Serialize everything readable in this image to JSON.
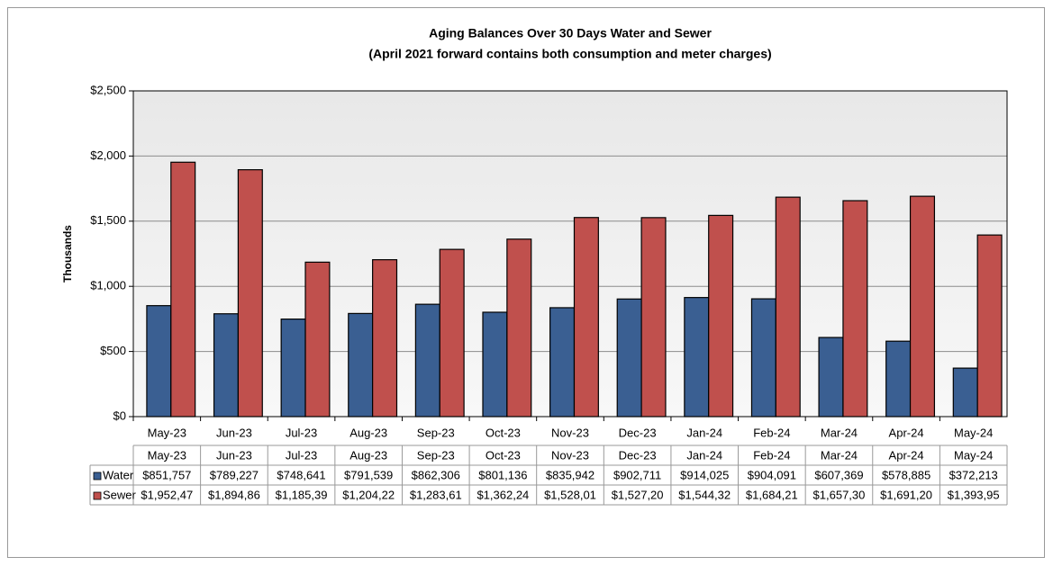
{
  "chart_data": {
    "type": "bar",
    "title": "Aging Balances Over 30 Days Water and Sewer",
    "subtitle": "(April 2021 forward contains both consumption and meter charges)",
    "y_label": "Thousands",
    "categories": [
      "May-23",
      "Jun-23",
      "Jul-23",
      "Aug-23",
      "Sep-23",
      "Oct-23",
      "Nov-23",
      "Dec-23",
      "Jan-24",
      "Feb-24",
      "Mar-24",
      "Apr-24",
      "May-24"
    ],
    "series": [
      {
        "name": "Water",
        "color": "#3a5f92",
        "values": [
          851.757,
          789.227,
          748.641,
          791.539,
          862.306,
          801.136,
          835.942,
          902.711,
          914.025,
          904.091,
          607.369,
          578.885,
          372.213
        ],
        "value_labels": [
          "$851,757",
          "$789,227",
          "$748,641",
          "$791,539",
          "$862,306",
          "$801,136",
          "$835,942",
          "$902,711",
          "$914,025",
          "$904,091",
          "$607,369",
          "$578,885",
          "$372,213"
        ]
      },
      {
        "name": "Sewer",
        "color": "#c0504d",
        "values": [
          1952.47,
          1894.86,
          1185.39,
          1204.22,
          1283.61,
          1362.24,
          1528.01,
          1527.2,
          1544.32,
          1684.21,
          1657.3,
          1691.2,
          1393.95
        ],
        "value_labels": [
          "$1,952,47",
          "$1,894,86",
          "$1,185,39",
          "$1,204,22",
          "$1,283,61",
          "$1,362,24",
          "$1,528,01",
          "$1,527,20",
          "$1,544,32",
          "$1,684,21",
          "$1,657,30",
          "$1,691,20",
          "$1,393,95"
        ]
      }
    ],
    "ylim": [
      0,
      2500
    ],
    "yticks": [
      {
        "value": 0,
        "label": "$0"
      },
      {
        "value": 500,
        "label": "$500"
      },
      {
        "value": 1000,
        "label": "$1,000"
      },
      {
        "value": 1500,
        "label": "$1,500"
      },
      {
        "value": 2000,
        "label": "$2,000"
      },
      {
        "value": 2500,
        "label": "$2,500"
      }
    ],
    "grid": true
  }
}
